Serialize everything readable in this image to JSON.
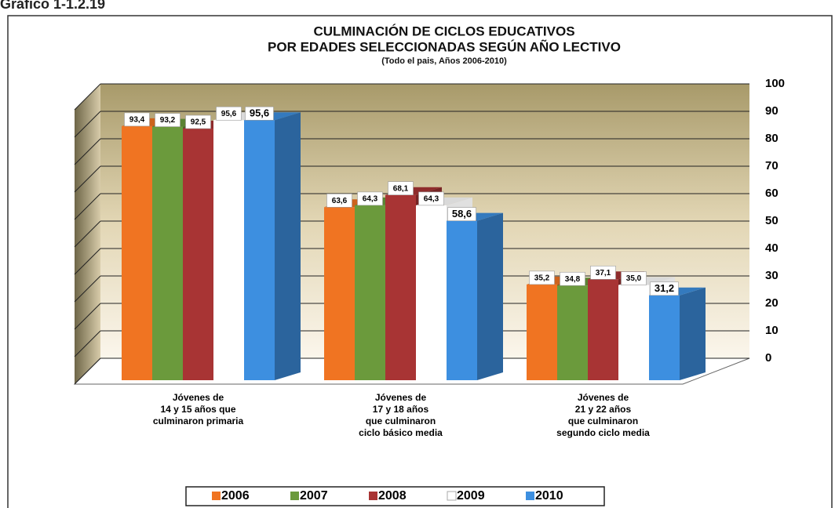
{
  "chart_data": {
    "type": "bar3d",
    "header": "Gráfico 1-1.2.19",
    "title": "CULMINACIÓN DE CICLOS EDUCATIVOS",
    "title2": "POR EDADES SELECCIONADAS SEGÚN AÑO LECTIVO",
    "subtitle": "(Todo el pais, Años 2006-2010)",
    "categories": [
      "Jóvenes de\n14 y 15 años que\nculminaron primaria",
      "Jóvenes de\n17 y 18 años\nque culminaron\nciclo básico media",
      "Jóvenes de\n21 y 22 años\nque culminaron\nsegundo ciclo media"
    ],
    "series": [
      {
        "name": "2006",
        "color": "#f07422",
        "values": [
          93.4,
          63.6,
          35.2
        ],
        "value_labels": [
          "93,4",
          "63,6",
          "35,2"
        ]
      },
      {
        "name": "2007",
        "color": "#6b9a3c",
        "values": [
          93.2,
          64.3,
          34.8
        ],
        "value_labels": [
          "93,2",
          "64,3",
          "34,8"
        ]
      },
      {
        "name": "2008",
        "color": "#a83434",
        "values": [
          92.5,
          68.1,
          37.1
        ],
        "value_labels": [
          "92,5",
          "68,1",
          "37,1"
        ]
      },
      {
        "name": "2009",
        "color": "#ffffff",
        "values": [
          95.6,
          64.3,
          35.0
        ],
        "value_labels": [
          "95,6",
          "64,3",
          "35,0"
        ]
      },
      {
        "name": "2010",
        "color": "#3d8fe0",
        "values": [
          95.6,
          58.6,
          31.2
        ],
        "value_labels": [
          "95,6",
          "58,6",
          "31,2"
        ]
      }
    ],
    "ylim": [
      0,
      100
    ],
    "yticks": [
      0,
      10,
      20,
      30,
      40,
      50,
      60,
      70,
      80,
      90,
      100
    ],
    "grid": true,
    "legend": "bottom"
  }
}
